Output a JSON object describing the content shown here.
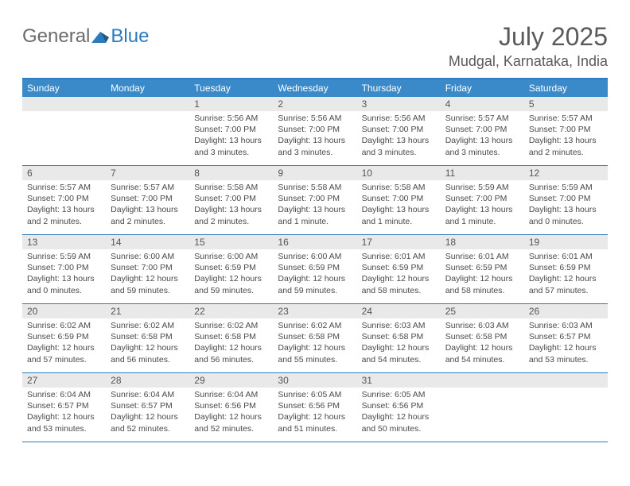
{
  "brand": {
    "general": "General",
    "blue": "Blue"
  },
  "title": "July 2025",
  "location": "Mudgal, Karnataka, India",
  "colors": {
    "accent": "#2d7bbf",
    "header_bg": "#3a8ac9",
    "daynum_bg": "#e9e9e9",
    "text_muted": "#5a5a5a",
    "body_text": "#4a4a4a",
    "background": "#ffffff"
  },
  "weekdays": [
    "Sunday",
    "Monday",
    "Tuesday",
    "Wednesday",
    "Thursday",
    "Friday",
    "Saturday"
  ],
  "weeks": [
    [
      null,
      null,
      {
        "n": "1",
        "sunrise": "5:56 AM",
        "sunset": "7:00 PM",
        "daylight": "13 hours and 3 minutes."
      },
      {
        "n": "2",
        "sunrise": "5:56 AM",
        "sunset": "7:00 PM",
        "daylight": "13 hours and 3 minutes."
      },
      {
        "n": "3",
        "sunrise": "5:56 AM",
        "sunset": "7:00 PM",
        "daylight": "13 hours and 3 minutes."
      },
      {
        "n": "4",
        "sunrise": "5:57 AM",
        "sunset": "7:00 PM",
        "daylight": "13 hours and 3 minutes."
      },
      {
        "n": "5",
        "sunrise": "5:57 AM",
        "sunset": "7:00 PM",
        "daylight": "13 hours and 2 minutes."
      }
    ],
    [
      {
        "n": "6",
        "sunrise": "5:57 AM",
        "sunset": "7:00 PM",
        "daylight": "13 hours and 2 minutes."
      },
      {
        "n": "7",
        "sunrise": "5:57 AM",
        "sunset": "7:00 PM",
        "daylight": "13 hours and 2 minutes."
      },
      {
        "n": "8",
        "sunrise": "5:58 AM",
        "sunset": "7:00 PM",
        "daylight": "13 hours and 2 minutes."
      },
      {
        "n": "9",
        "sunrise": "5:58 AM",
        "sunset": "7:00 PM",
        "daylight": "13 hours and 1 minute."
      },
      {
        "n": "10",
        "sunrise": "5:58 AM",
        "sunset": "7:00 PM",
        "daylight": "13 hours and 1 minute."
      },
      {
        "n": "11",
        "sunrise": "5:59 AM",
        "sunset": "7:00 PM",
        "daylight": "13 hours and 1 minute."
      },
      {
        "n": "12",
        "sunrise": "5:59 AM",
        "sunset": "7:00 PM",
        "daylight": "13 hours and 0 minutes."
      }
    ],
    [
      {
        "n": "13",
        "sunrise": "5:59 AM",
        "sunset": "7:00 PM",
        "daylight": "13 hours and 0 minutes."
      },
      {
        "n": "14",
        "sunrise": "6:00 AM",
        "sunset": "7:00 PM",
        "daylight": "12 hours and 59 minutes."
      },
      {
        "n": "15",
        "sunrise": "6:00 AM",
        "sunset": "6:59 PM",
        "daylight": "12 hours and 59 minutes."
      },
      {
        "n": "16",
        "sunrise": "6:00 AM",
        "sunset": "6:59 PM",
        "daylight": "12 hours and 59 minutes."
      },
      {
        "n": "17",
        "sunrise": "6:01 AM",
        "sunset": "6:59 PM",
        "daylight": "12 hours and 58 minutes."
      },
      {
        "n": "18",
        "sunrise": "6:01 AM",
        "sunset": "6:59 PM",
        "daylight": "12 hours and 58 minutes."
      },
      {
        "n": "19",
        "sunrise": "6:01 AM",
        "sunset": "6:59 PM",
        "daylight": "12 hours and 57 minutes."
      }
    ],
    [
      {
        "n": "20",
        "sunrise": "6:02 AM",
        "sunset": "6:59 PM",
        "daylight": "12 hours and 57 minutes."
      },
      {
        "n": "21",
        "sunrise": "6:02 AM",
        "sunset": "6:58 PM",
        "daylight": "12 hours and 56 minutes."
      },
      {
        "n": "22",
        "sunrise": "6:02 AM",
        "sunset": "6:58 PM",
        "daylight": "12 hours and 56 minutes."
      },
      {
        "n": "23",
        "sunrise": "6:02 AM",
        "sunset": "6:58 PM",
        "daylight": "12 hours and 55 minutes."
      },
      {
        "n": "24",
        "sunrise": "6:03 AM",
        "sunset": "6:58 PM",
        "daylight": "12 hours and 54 minutes."
      },
      {
        "n": "25",
        "sunrise": "6:03 AM",
        "sunset": "6:58 PM",
        "daylight": "12 hours and 54 minutes."
      },
      {
        "n": "26",
        "sunrise": "6:03 AM",
        "sunset": "6:57 PM",
        "daylight": "12 hours and 53 minutes."
      }
    ],
    [
      {
        "n": "27",
        "sunrise": "6:04 AM",
        "sunset": "6:57 PM",
        "daylight": "12 hours and 53 minutes."
      },
      {
        "n": "28",
        "sunrise": "6:04 AM",
        "sunset": "6:57 PM",
        "daylight": "12 hours and 52 minutes."
      },
      {
        "n": "29",
        "sunrise": "6:04 AM",
        "sunset": "6:56 PM",
        "daylight": "12 hours and 52 minutes."
      },
      {
        "n": "30",
        "sunrise": "6:05 AM",
        "sunset": "6:56 PM",
        "daylight": "12 hours and 51 minutes."
      },
      {
        "n": "31",
        "sunrise": "6:05 AM",
        "sunset": "6:56 PM",
        "daylight": "12 hours and 50 minutes."
      },
      null,
      null
    ]
  ],
  "labels": {
    "sunrise": "Sunrise:",
    "sunset": "Sunset:",
    "daylight": "Daylight:"
  }
}
